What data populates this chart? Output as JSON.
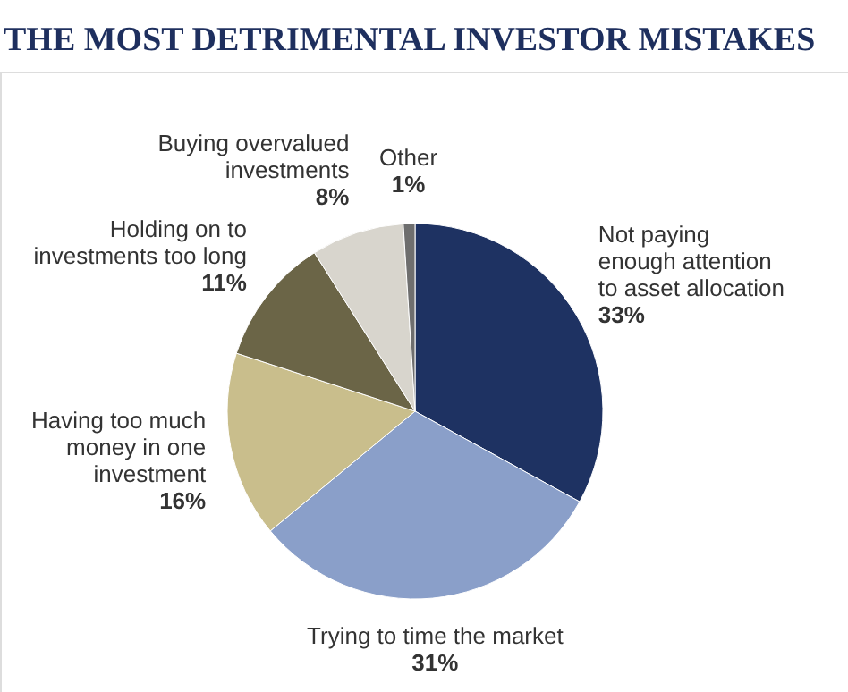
{
  "chart_data": {
    "type": "pie",
    "title": "THE MOST DETRIMENTAL INVESTOR MISTAKES",
    "categories": [
      "Not paying\nenough attention\nto asset allocation",
      "Trying to time the market",
      "Having too much\nmoney in one\ninvestment",
      "Holding on to\ninvestments too long",
      "Buying overvalued\ninvestments",
      "Other"
    ],
    "values": [
      33,
      31,
      16,
      11,
      8,
      1
    ],
    "value_labels": [
      "33%",
      "31%",
      "16%",
      "11%",
      "8%",
      "1%"
    ],
    "colors": [
      "#1e3262",
      "#8a9fc9",
      "#c9be8c",
      "#6b6547",
      "#d8d5cd",
      "#6e6e6e"
    ]
  }
}
